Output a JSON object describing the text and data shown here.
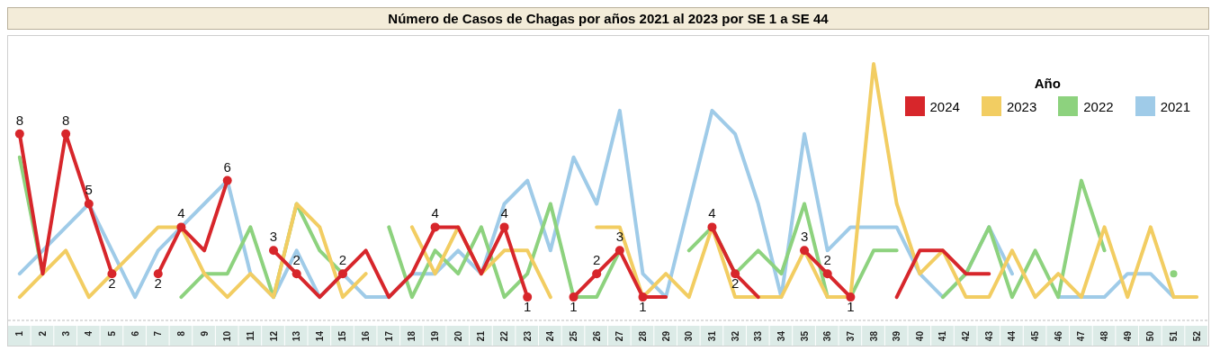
{
  "chart_data": {
    "type": "line",
    "title": "Número de Casos de Chagas por años 2021 al 2023 por SE 1 a SE 44",
    "categories": [
      "1",
      "2",
      "3",
      "4",
      "5",
      "6",
      "7",
      "8",
      "9",
      "10",
      "11",
      "12",
      "13",
      "14",
      "15",
      "16",
      "17",
      "18",
      "19",
      "20",
      "21",
      "22",
      "23",
      "24",
      "25",
      "26",
      "27",
      "28",
      "29",
      "30",
      "31",
      "32",
      "33",
      "34",
      "35",
      "36",
      "37",
      "38",
      "39",
      "40",
      "41",
      "42",
      "43",
      "44",
      "45",
      "46",
      "47",
      "48",
      "49",
      "50",
      "51",
      "52"
    ],
    "series": [
      {
        "name": "2024",
        "color": "#d7262b",
        "marker": "circle",
        "values": [
          8,
          2,
          8,
          5,
          2,
          null,
          2,
          4,
          3,
          6,
          null,
          3,
          2,
          1,
          2,
          3,
          1,
          2,
          4,
          4,
          2,
          4,
          1,
          null,
          1,
          2,
          3,
          1,
          1,
          null,
          4,
          2,
          1,
          null,
          3,
          2,
          1,
          null,
          1,
          3,
          3,
          2,
          2,
          null,
          null,
          null,
          null,
          null,
          null,
          null,
          null,
          null
        ],
        "value_labels": [
          "8",
          null,
          "8",
          "5",
          "2",
          null,
          "2",
          "4",
          null,
          "6",
          null,
          "3",
          "2",
          null,
          "2",
          null,
          null,
          null,
          "4",
          null,
          null,
          "4",
          "1",
          null,
          "1",
          "2",
          "3",
          "1",
          null,
          null,
          "4",
          "2",
          null,
          null,
          "3",
          "2",
          "1",
          null,
          null,
          null,
          null,
          null,
          null,
          null,
          null,
          null,
          null,
          null,
          null,
          null,
          null,
          null
        ]
      },
      {
        "name": "2023",
        "color": "#f2cd62",
        "values": [
          1,
          2,
          3,
          1,
          2,
          3,
          4,
          4,
          2,
          1,
          2,
          1,
          5,
          4,
          1,
          2,
          null,
          4,
          2,
          4,
          2,
          3,
          3,
          1,
          null,
          4,
          4,
          1,
          2,
          1,
          4,
          1,
          1,
          1,
          3,
          1,
          1,
          11,
          5,
          2,
          3,
          1,
          1,
          3,
          1,
          2,
          1,
          4,
          1,
          4,
          1,
          1
        ]
      },
      {
        "name": "2022",
        "color": "#8dd27e",
        "values": [
          7,
          2,
          null,
          null,
          null,
          null,
          null,
          1,
          2,
          2,
          4,
          1,
          5,
          3,
          2,
          null,
          4,
          1,
          3,
          2,
          4,
          1,
          2,
          5,
          1,
          1,
          3,
          null,
          null,
          3,
          4,
          2,
          3,
          2,
          5,
          1,
          1,
          3,
          3,
          null,
          1,
          2,
          4,
          1,
          3,
          1,
          6,
          3,
          null,
          null,
          2,
          null
        ]
      },
      {
        "name": "2021",
        "color": "#9fcbe8",
        "values": [
          2,
          3,
          4,
          5,
          3,
          1,
          3,
          4,
          5,
          6,
          2,
          1,
          3,
          1,
          2,
          1,
          1,
          2,
          2,
          3,
          2,
          5,
          6,
          3,
          7,
          5,
          9,
          2,
          1,
          5,
          9,
          8,
          5,
          1,
          8,
          3,
          4,
          4,
          4,
          2,
          1,
          2,
          4,
          2,
          null,
          1,
          1,
          1,
          2,
          2,
          1,
          null
        ]
      }
    ],
    "tick_labels": "x",
    "grid": false,
    "legend": "top right",
    "legend_title": "Año",
    "line_style": "solid"
  }
}
